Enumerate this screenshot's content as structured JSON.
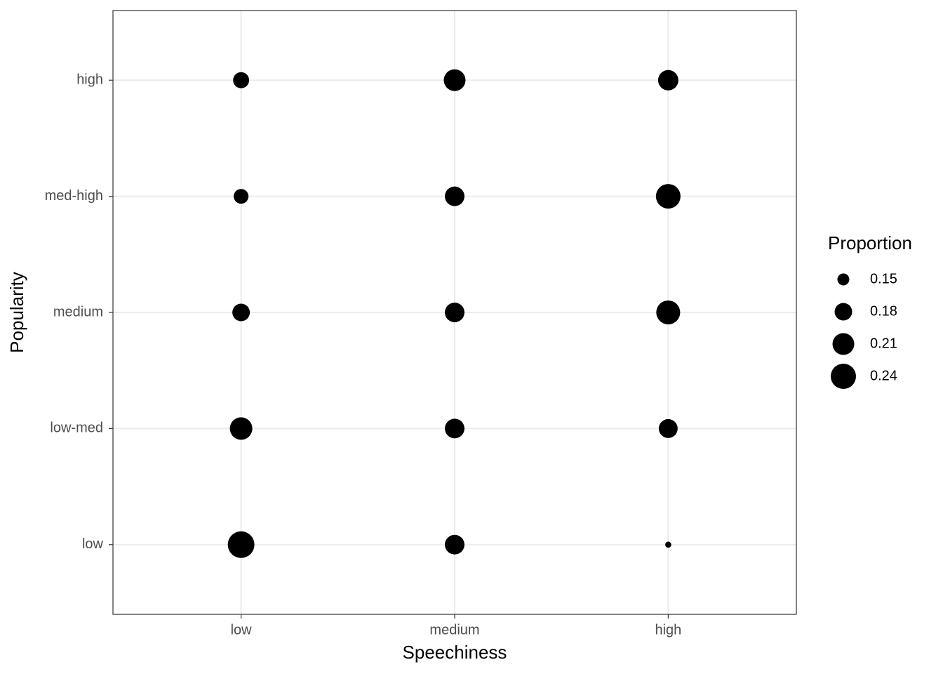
{
  "chart_data": {
    "type": "bubble",
    "x_label": "Speechiness",
    "y_label": "Popularity",
    "x_categories": [
      "low",
      "medium",
      "high"
    ],
    "y_categories": [
      "low",
      "low-med",
      "medium",
      "med-high",
      "high"
    ],
    "values": [
      [
        0.253,
        0.216,
        0.18,
        0.164,
        0.171
      ],
      [
        0.194,
        0.194,
        0.194,
        0.194,
        0.21
      ],
      [
        0.131,
        0.189,
        0.228,
        0.234,
        0.199
      ]
    ],
    "color": "#000000",
    "grid": true,
    "legend": {
      "title": "Proportion",
      "breaks": [
        0.15,
        0.18,
        0.21,
        0.24
      ],
      "position": "right"
    }
  }
}
